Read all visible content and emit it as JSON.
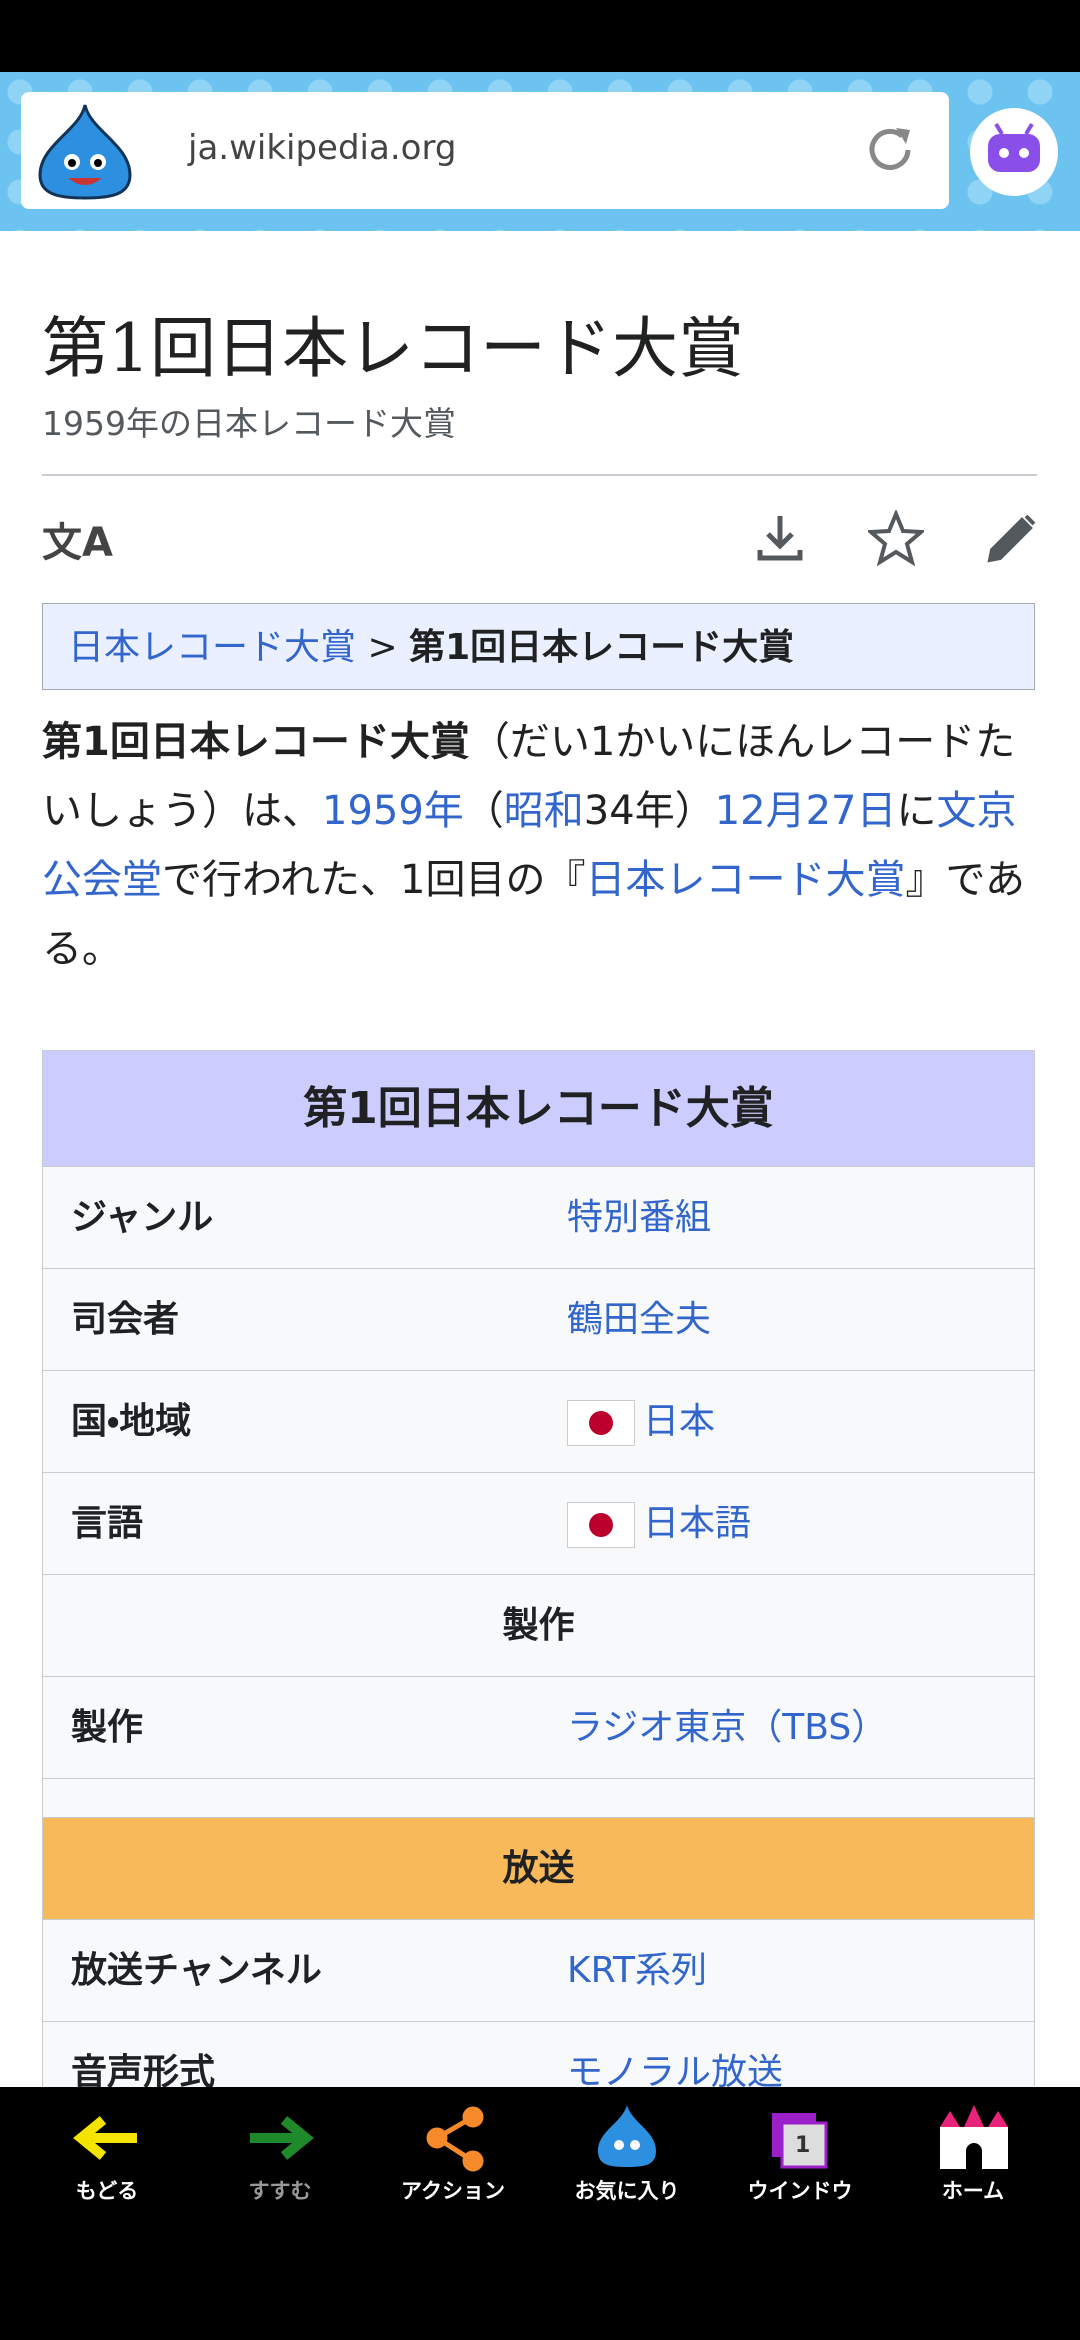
{
  "browser": {
    "url": "ja.wikipedia.org"
  },
  "article": {
    "title": "第1回日本レコード大賞",
    "subtitle": "1959年の日本レコード大賞",
    "breadcrumb": {
      "parent": "日本レコード大賞",
      "separator": ">",
      "current": "第1回日本レコード大賞"
    },
    "intro": [
      {
        "text": "第1回日本レコード大賞",
        "style": "bold"
      },
      {
        "text": "（だい1かいにほんレコードたいしょう）は、",
        "style": "plain"
      },
      {
        "text": "1959年",
        "style": "link"
      },
      {
        "text": "（",
        "style": "plain"
      },
      {
        "text": "昭和",
        "style": "link"
      },
      {
        "text": "34年）",
        "style": "plain"
      },
      {
        "text": "12月27日",
        "style": "link"
      },
      {
        "text": "に",
        "style": "plain"
      },
      {
        "text": "文京公会堂",
        "style": "link"
      },
      {
        "text": "で行われた、1回目の『",
        "style": "plain"
      },
      {
        "text": "日本レコード大賞",
        "style": "link"
      },
      {
        "text": "』である。",
        "style": "plain"
      }
    ]
  },
  "infobox": {
    "title": "第1回日本レコード大賞",
    "rows": [
      [
        "ジャンル",
        "特別番組"
      ],
      [
        "司会者",
        "鶴田全夫"
      ],
      [
        "国・地域",
        "日本"
      ],
      [
        "言語",
        "日本語"
      ]
    ],
    "section1": "製作",
    "rows2": [
      [
        "製作",
        "ラジオ東京（TBS）"
      ]
    ],
    "section2": "放送",
    "rows3": [
      [
        "放送チャンネル",
        "KRT系列"
      ],
      [
        "音声形式",
        "モノラル放送"
      ]
    ]
  },
  "bottom_nav": {
    "items": [
      "もどる",
      "すすむ",
      "アクション",
      "お気に入り",
      "ウインドウ",
      "ホーム"
    ],
    "window_count": "1"
  }
}
